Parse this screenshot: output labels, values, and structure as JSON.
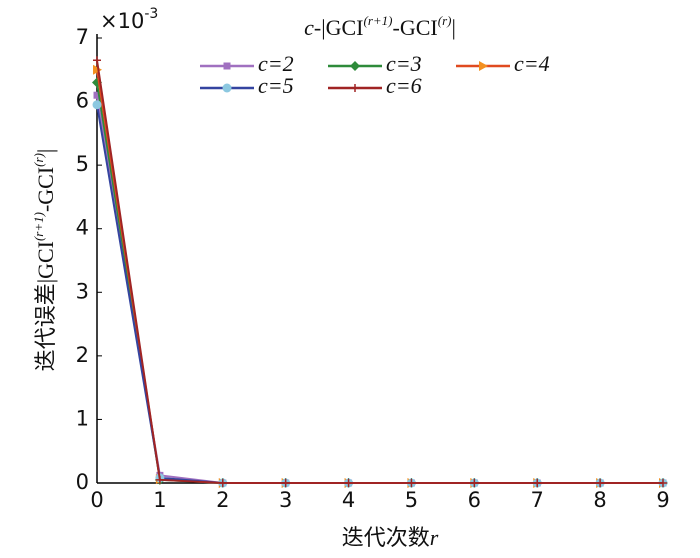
{
  "chart_data": {
    "type": "line",
    "title": [
      "c",
      "-|GCI",
      "(r+1)",
      "-GCI",
      "(r)",
      "|"
    ],
    "y_label": [
      "迭代误差|GCI",
      "(r+1)",
      "-GCI",
      "(r)",
      "|"
    ],
    "x_label": [
      "迭代次数",
      "r"
    ],
    "y_multiplier": [
      "×10",
      "-3"
    ],
    "x": [
      0,
      1,
      2,
      3,
      4,
      5,
      6,
      7,
      8,
      9
    ],
    "xlim": [
      0,
      9
    ],
    "xticks": [
      0,
      1,
      2,
      3,
      4,
      5,
      6,
      7,
      8,
      9
    ],
    "ylim": [
      0,
      7
    ],
    "yticks": [
      0,
      1,
      2,
      3,
      4,
      5,
      6,
      7
    ],
    "series": [
      {
        "name": "c=2",
        "color": "#a070c0",
        "marker": "square",
        "values": [
          6.1,
          0.12,
          0,
          0,
          0,
          0,
          0,
          0,
          0,
          0
        ]
      },
      {
        "name": "c=3",
        "color": "#2e8b3a",
        "marker": "diamond",
        "values": [
          6.3,
          0.05,
          0,
          0,
          0,
          0,
          0,
          0,
          0,
          0
        ]
      },
      {
        "name": "c=4",
        "color": "#e04a20",
        "marker": "triangle",
        "values": [
          6.5,
          0.06,
          0,
          0,
          0,
          0,
          0,
          0,
          0,
          0
        ]
      },
      {
        "name": "c=5",
        "color": "#3444a0",
        "marker": "circle",
        "values": [
          5.95,
          0.08,
          0,
          0,
          0,
          0,
          0,
          0,
          0,
          0
        ]
      },
      {
        "name": "c=6",
        "color": "#a02424",
        "marker": "plus",
        "values": [
          6.65,
          0.05,
          0,
          0,
          0,
          0,
          0,
          0,
          0,
          0
        ]
      }
    ]
  }
}
